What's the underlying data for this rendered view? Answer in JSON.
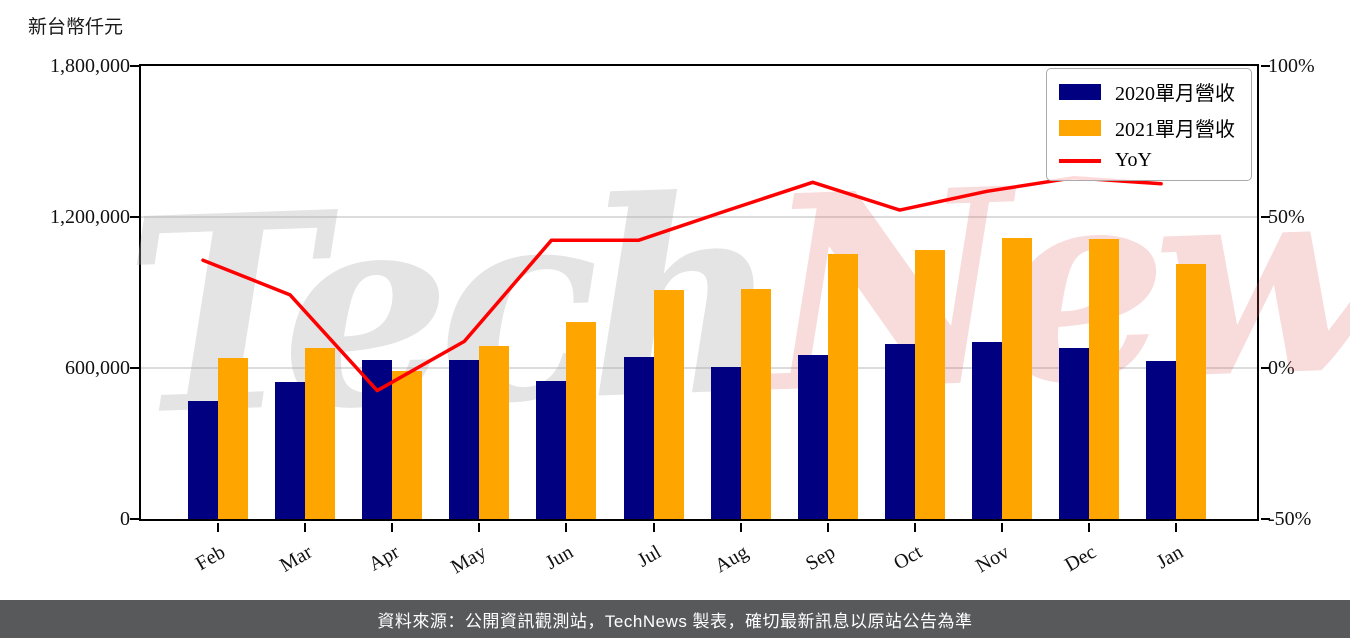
{
  "unit_label": "新台幣仟元",
  "watermark": {
    "part1": "Tech",
    "part2": "News"
  },
  "footer": {
    "text": "資料來源：公開資訊觀測站，TechNews 製表，確切最新訊息以原站公告為準"
  },
  "colors": {
    "bar_2020": "#000080",
    "bar_2021": "#FFA500",
    "yoy_line": "#FF0000",
    "grid": "#dcdcdc",
    "footer_bg": "#58595b",
    "footer_text": "#ffffff"
  },
  "chart_data": {
    "type": "bar+line",
    "categories": [
      "Feb",
      "Mar",
      "Apr",
      "May",
      "Jun",
      "Jul",
      "Aug",
      "Sep",
      "Oct",
      "Nov",
      "Dec",
      "Jan"
    ],
    "series": [
      {
        "name": "2020單月營收",
        "type": "bar",
        "axis": "left",
        "color": "#000080",
        "values": [
          470000,
          545000,
          633000,
          631000,
          550000,
          642000,
          605000,
          650000,
          696000,
          704000,
          678000,
          627000
        ]
      },
      {
        "name": "2021單月營收",
        "type": "bar",
        "axis": "left",
        "color": "#FFA500",
        "values": [
          638000,
          678000,
          587000,
          687000,
          783000,
          910000,
          914000,
          1052000,
          1069000,
          1117000,
          1113000,
          1012000
        ]
      },
      {
        "name": "YoY",
        "type": "line",
        "axis": "right",
        "unit": "%",
        "color": "#FF0000",
        "values": [
          35.7,
          24.2,
          -7.5,
          8.8,
          42.3,
          42.3,
          52.0,
          61.5,
          52.3,
          58.5,
          63.0,
          61.0
        ]
      }
    ],
    "left_axis": {
      "label": "新台幣仟元",
      "range": [
        0,
        1800000
      ],
      "ticks": [
        1800000,
        1200000,
        600000,
        0
      ],
      "tick_labels": [
        "1,800,000",
        "1,200,000",
        "600,000",
        "0"
      ]
    },
    "right_axis": {
      "range": [
        -50,
        100
      ],
      "ticks": [
        100,
        50,
        0,
        -50
      ],
      "tick_labels": [
        "100%",
        "50%",
        "0%",
        "-50%"
      ]
    },
    "grid": true,
    "legend_position": "top-right"
  }
}
